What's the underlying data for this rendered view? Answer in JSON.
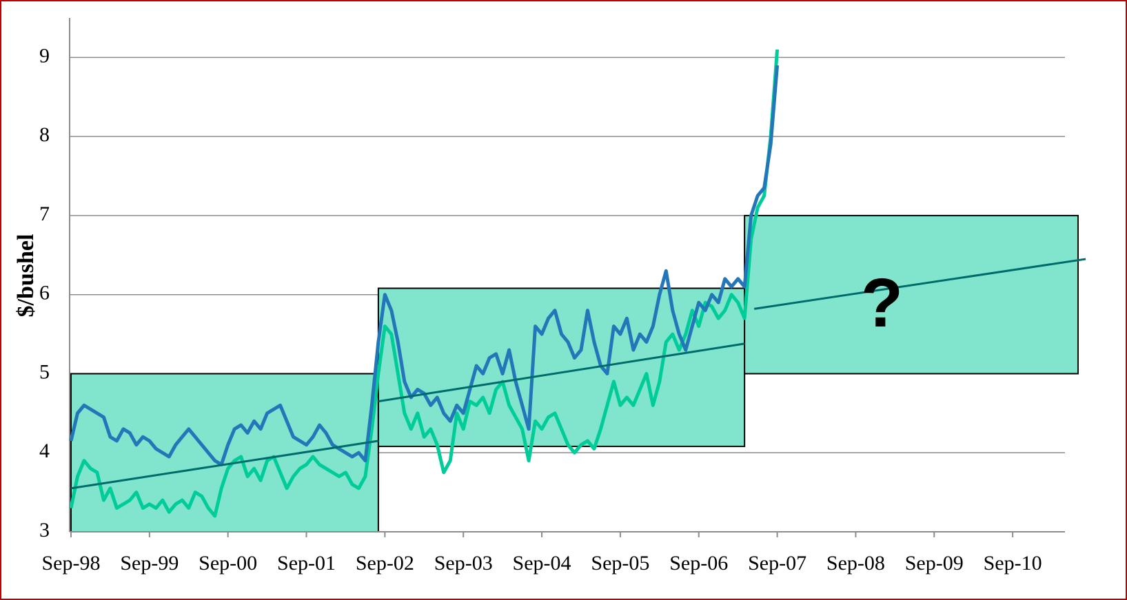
{
  "chart_data": {
    "type": "line",
    "y_label": "$/bushel",
    "x": [
      "1998-09",
      "1998-10",
      "1998-11",
      "1998-12",
      "1999-01",
      "1999-02",
      "1999-03",
      "1999-04",
      "1999-05",
      "1999-06",
      "1999-07",
      "1999-08",
      "1999-09",
      "1999-10",
      "1999-11",
      "1999-12",
      "2000-01",
      "2000-02",
      "2000-03",
      "2000-04",
      "2000-05",
      "2000-06",
      "2000-07",
      "2000-08",
      "2000-09",
      "2000-10",
      "2000-11",
      "2000-12",
      "2001-01",
      "2001-02",
      "2001-03",
      "2001-04",
      "2001-05",
      "2001-06",
      "2001-07",
      "2001-08",
      "2001-09",
      "2001-10",
      "2001-11",
      "2001-12",
      "2002-01",
      "2002-02",
      "2002-03",
      "2002-04",
      "2002-05",
      "2002-06",
      "2002-07",
      "2002-08",
      "2002-09",
      "2002-10",
      "2002-11",
      "2002-12",
      "2003-01",
      "2003-02",
      "2003-03",
      "2003-04",
      "2003-05",
      "2003-06",
      "2003-07",
      "2003-08",
      "2003-09",
      "2003-10",
      "2003-11",
      "2003-12",
      "2004-01",
      "2004-02",
      "2004-03",
      "2004-04",
      "2004-05",
      "2004-06",
      "2004-07",
      "2004-08",
      "2004-09",
      "2004-10",
      "2004-11",
      "2004-12",
      "2005-01",
      "2005-02",
      "2005-03",
      "2005-04",
      "2005-05",
      "2005-06",
      "2005-07",
      "2005-08",
      "2005-09",
      "2005-10",
      "2005-11",
      "2005-12",
      "2006-01",
      "2006-02",
      "2006-03",
      "2006-04",
      "2006-05",
      "2006-06",
      "2006-07",
      "2006-08",
      "2006-09",
      "2006-10",
      "2006-11",
      "2006-12",
      "2007-01",
      "2007-02",
      "2007-03",
      "2007-04",
      "2007-05",
      "2007-06",
      "2007-07",
      "2007-08",
      "2007-09"
    ],
    "series": [
      {
        "color": "#2377b8",
        "values": [
          4.15,
          4.5,
          4.6,
          4.55,
          4.5,
          4.45,
          4.2,
          4.15,
          4.3,
          4.25,
          4.1,
          4.2,
          4.15,
          4.05,
          4.0,
          3.95,
          4.1,
          4.2,
          4.3,
          4.2,
          4.1,
          4.0,
          3.9,
          3.85,
          4.1,
          4.3,
          4.35,
          4.25,
          4.4,
          4.3,
          4.5,
          4.55,
          4.6,
          4.4,
          4.2,
          4.15,
          4.1,
          4.2,
          4.35,
          4.25,
          4.1,
          4.05,
          4.0,
          3.95,
          4.0,
          3.9,
          4.6,
          5.4,
          6.0,
          5.8,
          5.4,
          4.9,
          4.7,
          4.8,
          4.75,
          4.6,
          4.7,
          4.5,
          4.4,
          4.6,
          4.5,
          4.8,
          5.1,
          5.0,
          5.2,
          5.25,
          5.0,
          5.3,
          4.9,
          4.6,
          4.3,
          5.6,
          5.5,
          5.7,
          5.8,
          5.5,
          5.4,
          5.2,
          5.3,
          5.8,
          5.4,
          5.1,
          5.0,
          5.6,
          5.5,
          5.7,
          5.3,
          5.5,
          5.4,
          5.6,
          6.0,
          6.3,
          5.8,
          5.5,
          5.3,
          5.6,
          5.9,
          5.8,
          6.0,
          5.9,
          6.2,
          6.1,
          6.2,
          6.1,
          7.0,
          7.25,
          7.35,
          7.9,
          8.9
        ]
      },
      {
        "color": "#00cc99",
        "values": [
          3.3,
          3.7,
          3.9,
          3.8,
          3.75,
          3.4,
          3.55,
          3.3,
          3.35,
          3.4,
          3.5,
          3.3,
          3.35,
          3.3,
          3.4,
          3.25,
          3.35,
          3.4,
          3.3,
          3.5,
          3.45,
          3.3,
          3.2,
          3.55,
          3.8,
          3.9,
          3.95,
          3.7,
          3.8,
          3.65,
          3.9,
          3.95,
          3.75,
          3.55,
          3.7,
          3.8,
          3.85,
          3.95,
          3.85,
          3.8,
          3.75,
          3.7,
          3.75,
          3.6,
          3.55,
          3.7,
          4.3,
          5.0,
          5.6,
          5.5,
          5.0,
          4.5,
          4.3,
          4.5,
          4.2,
          4.3,
          4.1,
          3.75,
          3.9,
          4.5,
          4.3,
          4.65,
          4.6,
          4.7,
          4.5,
          4.8,
          4.9,
          4.6,
          4.45,
          4.3,
          3.9,
          4.4,
          4.3,
          4.45,
          4.5,
          4.3,
          4.1,
          4.0,
          4.1,
          4.15,
          4.05,
          4.3,
          4.6,
          4.9,
          4.6,
          4.7,
          4.6,
          4.8,
          5.0,
          4.6,
          4.9,
          5.4,
          5.5,
          5.3,
          5.5,
          5.8,
          5.6,
          5.9,
          5.85,
          5.7,
          5.8,
          6.0,
          5.9,
          5.7,
          6.7,
          7.1,
          7.25,
          8.0,
          9.1
        ]
      }
    ],
    "ranges": [
      {
        "x0": "1998-09",
        "x1": "2002-08",
        "y0": 3,
        "y1": 5,
        "trend": [
          3.55,
          4.15
        ]
      },
      {
        "x0": "2002-08",
        "x1": "2007-04",
        "y0": 4.08,
        "y1": 6.08,
        "trend": [
          4.65,
          5.38
        ]
      },
      {
        "x0": "2007-04",
        "x1": "2011-07",
        "y0": 5,
        "y1": 7,
        "trend": [
          5.82,
          6.45
        ]
      }
    ],
    "range_color": "#80e5cc",
    "trend_color": "#006b6b",
    "annotation": {
      "text": "?",
      "x": "2009-01",
      "y": 6.0,
      "color": "#8b6f47"
    },
    "xlim": [
      "1998-09",
      "2011-05"
    ],
    "xticks": [
      {
        "value": "1998-09",
        "label": "Sep-98"
      },
      {
        "value": "1999-09",
        "label": "Sep-99"
      },
      {
        "value": "2000-09",
        "label": "Sep-00"
      },
      {
        "value": "2001-09",
        "label": "Sep-01"
      },
      {
        "value": "2002-09",
        "label": "Sep-02"
      },
      {
        "value": "2003-09",
        "label": "Sep-03"
      },
      {
        "value": "2004-09",
        "label": "Sep-04"
      },
      {
        "value": "2005-09",
        "label": "Sep-05"
      },
      {
        "value": "2006-09",
        "label": "Sep-06"
      },
      {
        "value": "2007-09",
        "label": "Sep-07"
      },
      {
        "value": "2008-09",
        "label": "Sep-08"
      },
      {
        "value": "2009-09",
        "label": "Sep-09"
      },
      {
        "value": "2010-09",
        "label": "Sep-10"
      }
    ],
    "ylim": [
      3,
      9.5
    ],
    "yticks": [
      3,
      4,
      5,
      6,
      7,
      8,
      9
    ],
    "grid": true
  }
}
